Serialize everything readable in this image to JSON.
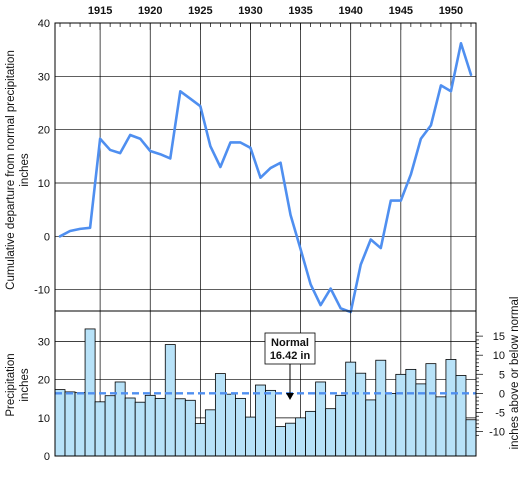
{
  "chart_data": [
    {
      "type": "line",
      "title": "",
      "xlabel": "",
      "ylabel_line1": "Cumulative departure from normal precipitation",
      "ylabel_line2": "inches",
      "x_tick_labels": [
        "1915",
        "1920",
        "1925",
        "1930",
        "1935",
        "1940",
        "1945",
        "1950"
      ],
      "y_tick_labels": [
        "40",
        "30",
        "20",
        "10",
        "0",
        "-10"
      ],
      "ylim": [
        -14,
        40
      ],
      "xlim": [
        1910.5,
        1952.5
      ],
      "grid": true,
      "line_color": "#4f8ff0",
      "series": [
        {
          "x": [
            1911,
            1912,
            1913,
            1914,
            1915,
            1916,
            1917,
            1918,
            1919,
            1920,
            1921,
            1922,
            1923,
            1924,
            1925,
            1926,
            1927,
            1928,
            1929,
            1930,
            1931,
            1932,
            1933,
            1934,
            1935,
            1936,
            1937,
            1938,
            1939,
            1940,
            1941,
            1942,
            1943,
            1944,
            1945,
            1946,
            1947,
            1948,
            1949,
            1950,
            1951,
            1952
          ],
          "values": [
            0.0,
            1.0,
            1.4,
            1.6,
            18.3,
            16.2,
            15.6,
            19.0,
            18.3,
            16.0,
            15.4,
            14.6,
            27.2,
            25.8,
            24.4,
            16.9,
            13.0,
            17.6,
            17.6,
            16.6,
            11.0,
            12.8,
            13.8,
            4.0,
            -2.4,
            -9.0,
            -12.9,
            -9.8,
            -13.5,
            -14.2,
            -5.3,
            -0.6,
            -2.2,
            6.7,
            6.7,
            11.6,
            18.3,
            20.8,
            28.3,
            27.2,
            36.2,
            30.3
          ]
        }
      ]
    },
    {
      "type": "bar",
      "title": "",
      "xlabel": "",
      "ylabel_line1": "Precipitation",
      "ylabel_line2": "inches",
      "ylabel_right": "inches above or below normal",
      "categories": [
        "1911",
        "1912",
        "1913",
        "1914",
        "1915",
        "1916",
        "1917",
        "1918",
        "1919",
        "1920",
        "1921",
        "1922",
        "1923",
        "1924",
        "1925",
        "1926",
        "1927",
        "1928",
        "1929",
        "1930",
        "1931",
        "1932",
        "1933",
        "1934",
        "1935",
        "1936",
        "1937",
        "1938",
        "1939",
        "1940",
        "1941",
        "1942",
        "1943",
        "1944",
        "1945",
        "1946",
        "1947",
        "1948",
        "1949",
        "1950",
        "1951",
        "1952"
      ],
      "values": [
        17.4,
        16.8,
        16.6,
        33.3,
        14.2,
        15.8,
        19.4,
        15.2,
        14.1,
        15.9,
        15.1,
        29.2,
        15.0,
        14.6,
        8.5,
        12.1,
        21.6,
        16.2,
        15.1,
        10.2,
        18.6,
        17.2,
        7.7,
        8.6,
        10.0,
        11.7,
        19.4,
        12.4,
        15.9,
        24.6,
        21.7,
        14.7,
        25.1,
        16.4,
        21.4,
        22.7,
        18.9,
        24.2,
        15.5,
        25.3,
        21.1,
        9.5
      ],
      "ylim": [
        0,
        38
      ],
      "y_tick_labels": [
        "0",
        "10",
        "20",
        "30"
      ],
      "right_tick_labels": [
        "15",
        "10",
        "5",
        "0",
        "-5",
        "-10"
      ],
      "normal_value": 16.42,
      "normal_label_line1": "Normal",
      "normal_label_line2": "16.42 in",
      "grid": true,
      "bar_color": "#b8e2f8",
      "normal_line_color": "#4f8ff0"
    }
  ]
}
